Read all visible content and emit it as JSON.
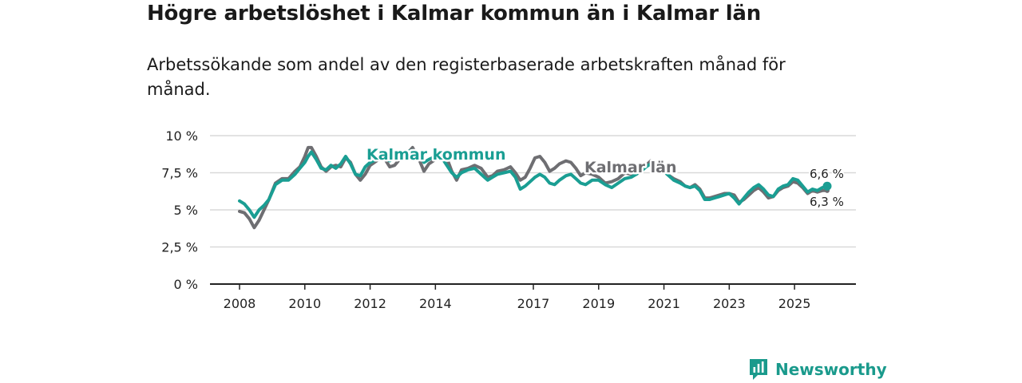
{
  "header": {
    "title": "Högre arbetslöshet i Kalmar kommun än i Kalmar län",
    "subtitle": "Arbetssökande som andel av den registerbaserade arbetskraften månad för månad."
  },
  "brand": {
    "name": "Newsworthy",
    "icon": "newsworthy-logo-icon"
  },
  "colors": {
    "kommun": "#1a9e93",
    "lan": "#6e6e72",
    "grid": "#d9d9d9",
    "axis": "#222222"
  },
  "chart_data": {
    "type": "line",
    "title": "Högre arbetslöshet i Kalmar kommun än i Kalmar län",
    "xlabel": "",
    "ylabel": "",
    "xlim": [
      2008,
      2026.4
    ],
    "ylim": [
      0,
      10
    ],
    "y_ticks": [
      0,
      2.5,
      5,
      7.5,
      10
    ],
    "y_tick_labels": [
      "0 %",
      "2,5 %",
      "5 %",
      "7,5 %",
      "10 %"
    ],
    "x_ticks": [
      2008,
      2010,
      2012,
      2014,
      2017,
      2019,
      2021,
      2023,
      2025
    ],
    "x_tick_labels": [
      "2008",
      "2010",
      "2012",
      "2014",
      "2017",
      "2019",
      "2021",
      "2023",
      "2025"
    ],
    "grid": true,
    "series": [
      {
        "name": "Kalmar län",
        "label": "Kalmar län",
        "end_label": "6,3 %",
        "points": [
          [
            2008.0,
            4.9
          ],
          [
            2008.15,
            4.8
          ],
          [
            2008.3,
            4.4
          ],
          [
            2008.45,
            3.8
          ],
          [
            2008.6,
            4.3
          ],
          [
            2008.75,
            5.0
          ],
          [
            2008.9,
            5.7
          ],
          [
            2009.1,
            6.8
          ],
          [
            2009.3,
            7.1
          ],
          [
            2009.5,
            7.1
          ],
          [
            2009.7,
            7.6
          ],
          [
            2009.85,
            7.9
          ],
          [
            2010.0,
            8.6
          ],
          [
            2010.1,
            9.2
          ],
          [
            2010.2,
            9.2
          ],
          [
            2010.35,
            8.6
          ],
          [
            2010.5,
            7.9
          ],
          [
            2010.65,
            7.6
          ],
          [
            2010.8,
            7.9
          ],
          [
            2010.95,
            8.0
          ],
          [
            2011.1,
            7.9
          ],
          [
            2011.25,
            8.5
          ],
          [
            2011.4,
            8.2
          ],
          [
            2011.55,
            7.4
          ],
          [
            2011.7,
            7.0
          ],
          [
            2011.85,
            7.4
          ],
          [
            2012.0,
            8.0
          ],
          [
            2012.2,
            8.3
          ],
          [
            2012.4,
            8.6
          ],
          [
            2012.6,
            7.9
          ],
          [
            2012.75,
            8.0
          ],
          [
            2012.9,
            8.4
          ],
          [
            2013.1,
            8.7
          ],
          [
            2013.3,
            9.2
          ],
          [
            2013.5,
            8.4
          ],
          [
            2013.65,
            7.6
          ],
          [
            2013.8,
            8.1
          ],
          [
            2014.0,
            8.4
          ],
          [
            2014.2,
            8.6
          ],
          [
            2014.35,
            8.5
          ],
          [
            2014.5,
            7.6
          ],
          [
            2014.65,
            7.0
          ],
          [
            2014.8,
            7.7
          ],
          [
            2015.0,
            7.8
          ],
          [
            2015.2,
            8.0
          ],
          [
            2015.4,
            7.8
          ],
          [
            2015.6,
            7.2
          ],
          [
            2015.75,
            7.3
          ],
          [
            2015.9,
            7.6
          ],
          [
            2016.1,
            7.7
          ],
          [
            2016.3,
            7.9
          ],
          [
            2016.45,
            7.5
          ],
          [
            2016.6,
            7.0
          ],
          [
            2016.75,
            7.2
          ],
          [
            2016.9,
            7.8
          ],
          [
            2017.05,
            8.5
          ],
          [
            2017.2,
            8.6
          ],
          [
            2017.35,
            8.2
          ],
          [
            2017.5,
            7.6
          ],
          [
            2017.65,
            7.8
          ],
          [
            2017.8,
            8.1
          ],
          [
            2018.0,
            8.3
          ],
          [
            2018.15,
            8.2
          ],
          [
            2018.3,
            7.8
          ],
          [
            2018.45,
            7.3
          ],
          [
            2018.6,
            7.5
          ],
          [
            2018.8,
            7.4
          ],
          [
            2019.0,
            7.2
          ],
          [
            2019.2,
            6.8
          ],
          [
            2019.4,
            6.9
          ],
          [
            2019.6,
            7.1
          ],
          [
            2019.8,
            7.5
          ],
          [
            2020.0,
            7.4
          ],
          [
            2020.15,
            7.4
          ],
          [
            2020.3,
            7.6
          ],
          [
            2020.45,
            8.0
          ],
          [
            2020.6,
            8.3
          ],
          [
            2020.75,
            8.1
          ],
          [
            2020.9,
            7.9
          ],
          [
            2021.1,
            7.4
          ],
          [
            2021.3,
            7.1
          ],
          [
            2021.5,
            6.9
          ],
          [
            2021.65,
            6.6
          ],
          [
            2021.8,
            6.5
          ],
          [
            2021.95,
            6.7
          ],
          [
            2022.1,
            6.4
          ],
          [
            2022.25,
            5.8
          ],
          [
            2022.4,
            5.8
          ],
          [
            2022.55,
            5.9
          ],
          [
            2022.7,
            6.0
          ],
          [
            2022.85,
            6.1
          ],
          [
            2023.0,
            6.1
          ],
          [
            2023.15,
            6.0
          ],
          [
            2023.3,
            5.5
          ],
          [
            2023.45,
            5.7
          ],
          [
            2023.6,
            6.0
          ],
          [
            2023.75,
            6.3
          ],
          [
            2023.9,
            6.5
          ],
          [
            2024.05,
            6.2
          ],
          [
            2024.2,
            5.8
          ],
          [
            2024.35,
            5.9
          ],
          [
            2024.5,
            6.3
          ],
          [
            2024.65,
            6.5
          ],
          [
            2024.8,
            6.6
          ],
          [
            2024.95,
            6.9
          ],
          [
            2025.1,
            6.8
          ],
          [
            2025.25,
            6.5
          ],
          [
            2025.4,
            6.1
          ],
          [
            2025.55,
            6.3
          ],
          [
            2025.7,
            6.2
          ],
          [
            2025.85,
            6.3
          ],
          [
            2026.0,
            6.3
          ]
        ]
      },
      {
        "name": "Kalmar kommun",
        "label": "Kalmar kommun",
        "end_label": "6,6 %",
        "points": [
          [
            2008.0,
            5.6
          ],
          [
            2008.15,
            5.4
          ],
          [
            2008.3,
            5.0
          ],
          [
            2008.45,
            4.5
          ],
          [
            2008.6,
            5.0
          ],
          [
            2008.75,
            5.3
          ],
          [
            2008.9,
            5.7
          ],
          [
            2009.1,
            6.7
          ],
          [
            2009.3,
            7.0
          ],
          [
            2009.5,
            7.0
          ],
          [
            2009.7,
            7.4
          ],
          [
            2009.85,
            7.8
          ],
          [
            2010.0,
            8.2
          ],
          [
            2010.1,
            8.6
          ],
          [
            2010.2,
            8.9
          ],
          [
            2010.35,
            8.4
          ],
          [
            2010.5,
            7.8
          ],
          [
            2010.65,
            7.7
          ],
          [
            2010.8,
            8.0
          ],
          [
            2010.95,
            7.8
          ],
          [
            2011.1,
            8.1
          ],
          [
            2011.25,
            8.6
          ],
          [
            2011.4,
            8.1
          ],
          [
            2011.55,
            7.4
          ],
          [
            2011.7,
            7.3
          ],
          [
            2011.85,
            7.9
          ],
          [
            2012.0,
            8.2
          ],
          [
            2012.2,
            8.4
          ],
          [
            2012.4,
            8.5
          ],
          [
            2012.6,
            8.3
          ],
          [
            2012.75,
            8.5
          ],
          [
            2012.9,
            8.7
          ],
          [
            2013.1,
            8.9
          ],
          [
            2013.3,
            9.0
          ],
          [
            2013.5,
            8.7
          ],
          [
            2013.65,
            8.2
          ],
          [
            2013.8,
            8.4
          ],
          [
            2014.0,
            8.6
          ],
          [
            2014.2,
            8.5
          ],
          [
            2014.35,
            8.0
          ],
          [
            2014.5,
            7.5
          ],
          [
            2014.65,
            7.2
          ],
          [
            2014.8,
            7.5
          ],
          [
            2015.0,
            7.7
          ],
          [
            2015.2,
            7.8
          ],
          [
            2015.4,
            7.4
          ],
          [
            2015.6,
            7.0
          ],
          [
            2015.75,
            7.2
          ],
          [
            2015.9,
            7.4
          ],
          [
            2016.1,
            7.5
          ],
          [
            2016.3,
            7.6
          ],
          [
            2016.45,
            7.2
          ],
          [
            2016.6,
            6.4
          ],
          [
            2016.75,
            6.6
          ],
          [
            2016.9,
            6.9
          ],
          [
            2017.05,
            7.2
          ],
          [
            2017.2,
            7.4
          ],
          [
            2017.35,
            7.2
          ],
          [
            2017.5,
            6.8
          ],
          [
            2017.65,
            6.7
          ],
          [
            2017.8,
            7.0
          ],
          [
            2018.0,
            7.3
          ],
          [
            2018.15,
            7.4
          ],
          [
            2018.3,
            7.1
          ],
          [
            2018.45,
            6.8
          ],
          [
            2018.6,
            6.7
          ],
          [
            2018.8,
            7.0
          ],
          [
            2019.0,
            7.0
          ],
          [
            2019.2,
            6.7
          ],
          [
            2019.4,
            6.5
          ],
          [
            2019.6,
            6.8
          ],
          [
            2019.8,
            7.1
          ],
          [
            2020.0,
            7.2
          ],
          [
            2020.15,
            7.4
          ],
          [
            2020.3,
            7.6
          ],
          [
            2020.45,
            7.9
          ],
          [
            2020.6,
            8.1
          ],
          [
            2020.75,
            8.0
          ],
          [
            2020.9,
            7.8
          ],
          [
            2021.1,
            7.4
          ],
          [
            2021.3,
            7.0
          ],
          [
            2021.5,
            6.8
          ],
          [
            2021.65,
            6.6
          ],
          [
            2021.8,
            6.5
          ],
          [
            2021.95,
            6.6
          ],
          [
            2022.1,
            6.3
          ],
          [
            2022.25,
            5.7
          ],
          [
            2022.4,
            5.7
          ],
          [
            2022.55,
            5.8
          ],
          [
            2022.7,
            5.9
          ],
          [
            2022.85,
            6.0
          ],
          [
            2023.0,
            6.1
          ],
          [
            2023.15,
            5.8
          ],
          [
            2023.3,
            5.4
          ],
          [
            2023.45,
            5.8
          ],
          [
            2023.6,
            6.2
          ],
          [
            2023.75,
            6.5
          ],
          [
            2023.9,
            6.7
          ],
          [
            2024.05,
            6.4
          ],
          [
            2024.2,
            6.0
          ],
          [
            2024.35,
            5.9
          ],
          [
            2024.5,
            6.4
          ],
          [
            2024.65,
            6.6
          ],
          [
            2024.8,
            6.7
          ],
          [
            2024.95,
            7.1
          ],
          [
            2025.1,
            7.0
          ],
          [
            2025.25,
            6.6
          ],
          [
            2025.4,
            6.2
          ],
          [
            2025.55,
            6.4
          ],
          [
            2025.7,
            6.3
          ],
          [
            2025.85,
            6.5
          ],
          [
            2026.0,
            6.6
          ]
        ]
      }
    ]
  }
}
